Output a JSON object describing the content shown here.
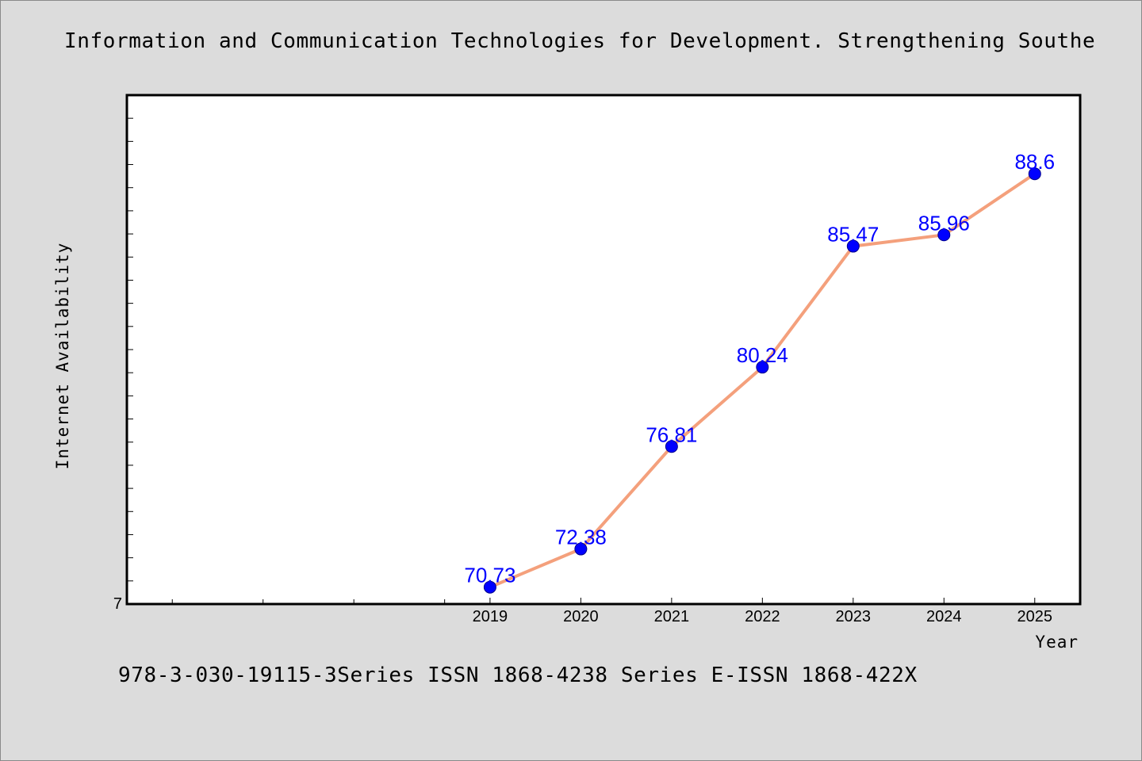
{
  "title": "Information and Communication Technologies for Development. Strengthening Southe",
  "footer": "978-3-030-19115-3Series ISSN 1868-4238 Series E-ISSN 1868-422X",
  "colors": {
    "line": "#f4a07c",
    "marker": "#0000ff",
    "label": "#0000ff",
    "background": "#dcdcdc",
    "plot_bg": "#ffffff"
  },
  "chart_data": {
    "type": "line",
    "title": "Information and Communication Technologies for Development. Strengthening Southe",
    "xlabel": "Year",
    "ylabel": "Internet Availability",
    "x": [
      "2019",
      "2020",
      "2021",
      "2022",
      "2023",
      "2024",
      "2025"
    ],
    "series": [
      {
        "values": [
          70.73,
          72.38,
          76.81,
          80.24,
          85.47,
          85.96,
          88.6
        ]
      }
    ],
    "data_labels": [
      "70.73",
      "72.38",
      "76.81",
      "80.24",
      "85.47",
      "85.96",
      "88.6"
    ],
    "y_tick_labels": [
      "7"
    ],
    "ylim": [
      70,
      92
    ],
    "xlim": [
      2015,
      2025.5
    ],
    "grid": false,
    "legend": "none"
  }
}
